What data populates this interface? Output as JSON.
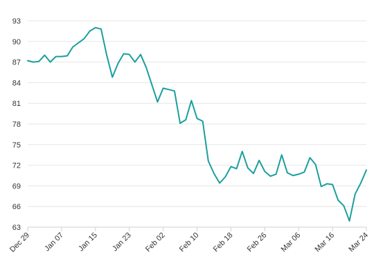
{
  "chart_data": {
    "type": "line",
    "title": "",
    "xlabel": "",
    "ylabel": "",
    "ylim": [
      63,
      93
    ],
    "yticks": [
      63,
      66,
      69,
      72,
      75,
      78,
      81,
      84,
      87,
      90,
      93
    ],
    "xticks": [
      "Dec 29",
      "Jan 07",
      "Jan 15",
      "Jan 23",
      "Feb 02",
      "Feb 10",
      "Feb 18",
      "Feb 26",
      "Mar 06",
      "Mar 16",
      "Mar 24"
    ],
    "grid": "horizontal",
    "line_color": "#1a9e9e",
    "series": [
      {
        "values": [
          87.2,
          87.0,
          87.1,
          88.0,
          87.0,
          87.8,
          87.8,
          87.9,
          89.2,
          89.8,
          90.4,
          91.5,
          92.0,
          91.8,
          88.0,
          84.8,
          86.8,
          88.2,
          88.1,
          87.0,
          88.1,
          86.2,
          83.7,
          81.2,
          83.2,
          83.0,
          82.8,
          78.1,
          78.6,
          81.4,
          78.8,
          78.4,
          72.6,
          70.8,
          69.4,
          70.3,
          71.8,
          71.5,
          74.0,
          71.6,
          70.8,
          72.7,
          71.1,
          70.4,
          70.7,
          73.5,
          70.9,
          70.5,
          70.7,
          71.0,
          73.1,
          72.1,
          68.9,
          69.3,
          69.2,
          66.9,
          66.1,
          63.9,
          67.8,
          69.4,
          71.3
        ]
      }
    ]
  }
}
